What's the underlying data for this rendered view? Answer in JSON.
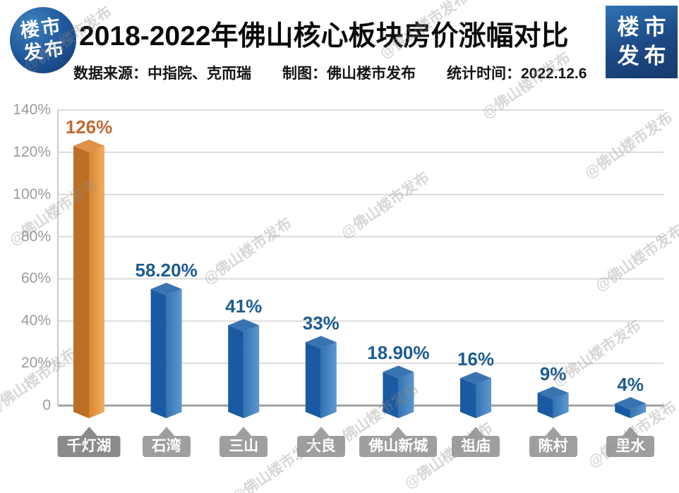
{
  "header": {
    "logo_left": {
      "line1": "楼市",
      "line2": "发布"
    },
    "title": "2018-2022年佛山核心板块房价涨幅对比",
    "subtitle": {
      "source": "数据来源：中指院、克而瑞",
      "maker": "制图：佛山楼市发布",
      "time": "统计时间：2022.12.6"
    },
    "logo_right": {
      "line1": "楼市",
      "line2": "发布"
    }
  },
  "watermark_text": "@佛山楼市发布",
  "chart_data": {
    "type": "bar",
    "title": "2018-2022年佛山核心板块房价涨幅对比",
    "categories": [
      "千灯湖",
      "石湾",
      "三山",
      "大良",
      "佛山新城",
      "祖庙",
      "陈村",
      "里水"
    ],
    "values": [
      126,
      58.2,
      41,
      33,
      18.9,
      16,
      9,
      4
    ],
    "value_labels": [
      "126%",
      "58.20%",
      "41%",
      "33%",
      "18.90%",
      "16%",
      "9%",
      "4%"
    ],
    "unit": "%",
    "ylim": [
      0,
      140
    ],
    "y_tick_labels": [
      "140%",
      "120%",
      "100%",
      "80%",
      "60%",
      "40%",
      "20%",
      "0"
    ],
    "grid": true,
    "legend": false,
    "highlight_index": 0,
    "style": {
      "highlight": {
        "left": "#bc6f24",
        "right_from": "#d9862f",
        "right_to": "#f2ad64",
        "top": "#e0904a",
        "label": "#c16a30"
      },
      "normal": {
        "left": "#1a5aa2",
        "right_from": "#3474b3",
        "right_to": "#5d97cf",
        "top": "#3a74b0",
        "label": "#1d5c92"
      },
      "category_box_first": "#8b8b8b",
      "category_box": "#9f9f9f",
      "gridline": "#dcdcdc",
      "zero_line": "#a0a0a0",
      "axis_line": "#c9c9c9"
    }
  }
}
